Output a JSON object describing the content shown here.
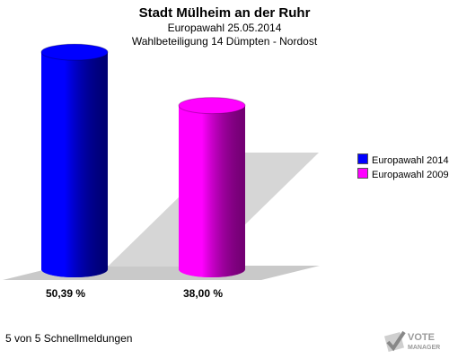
{
  "header": {
    "title": "Stadt Mülheim an der Ruhr",
    "subtitle": "Europawahl 25.05.2014",
    "subtitle2": "Wahlbeteiligung 14 Dümpten - Nordost"
  },
  "chart_data": {
    "type": "bar",
    "categories": [
      "Europawahl 2014",
      "Europawahl 2009"
    ],
    "values": [
      50.39,
      38.0
    ],
    "value_labels": [
      "50,39 %",
      "38,00 %"
    ],
    "colors": [
      "#0000ff",
      "#ff00ff"
    ],
    "ylim": [
      0,
      60
    ],
    "legend_position": "right",
    "grid": false
  },
  "legend": [
    {
      "label": "Europawahl 2014",
      "color": "#0000ff"
    },
    {
      "label": "Europawahl 2009",
      "color": "#ff00ff"
    }
  ],
  "footer": {
    "text": "5 von 5 Schnellmeldungen"
  },
  "logo": {
    "line1": "VOTE",
    "line2": "MANAGER",
    "icon": "checkmark-ballot-icon"
  }
}
